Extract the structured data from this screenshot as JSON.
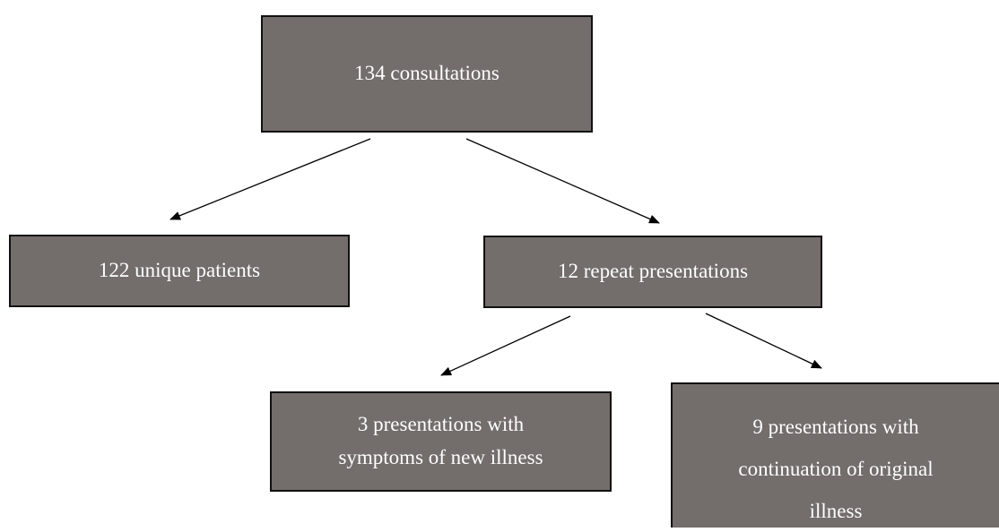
{
  "nodes": [
    {
      "lines": [
        "134 consultations"
      ]
    },
    {
      "lines": [
        "122 unique patients"
      ]
    },
    {
      "lines": [
        "12 repeat presentations"
      ]
    },
    {
      "lines": [
        "3 presentations with",
        "symptoms of new illness"
      ]
    },
    {
      "lines": [
        "9 presentations with",
        "continuation of original",
        "illness"
      ]
    }
  ]
}
